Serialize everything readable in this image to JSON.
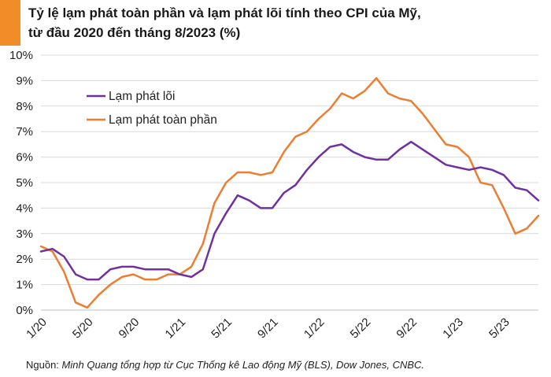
{
  "title": {
    "line1": "Tỷ lệ lạm phát toàn phần và lạm phát lõi tính theo CPI của Mỹ,",
    "line2": "từ đầu 2020 đến tháng 8/2023 (%)"
  },
  "source": {
    "prefix": "Nguồn: ",
    "text": "Minh Quang tổng hợp từ Cục Thống kê Lao động Mỹ (BLS), Dow Jones, CNBC."
  },
  "colors": {
    "accent": "#f28c28",
    "core": "#7030a0",
    "headline": "#ed7d31",
    "grid": "#d9d9d9"
  },
  "chart_data": {
    "type": "line",
    "x": [
      "1/20",
      "2/20",
      "3/20",
      "4/20",
      "5/20",
      "6/20",
      "7/20",
      "8/20",
      "9/20",
      "10/20",
      "11/20",
      "12/20",
      "1/21",
      "2/21",
      "3/21",
      "4/21",
      "5/21",
      "6/21",
      "7/21",
      "8/21",
      "9/21",
      "10/21",
      "11/21",
      "12/21",
      "1/22",
      "2/22",
      "3/22",
      "4/22",
      "5/22",
      "6/22",
      "7/22",
      "8/22",
      "9/22",
      "10/22",
      "11/22",
      "12/22",
      "1/23",
      "2/23",
      "3/23",
      "4/23",
      "5/23",
      "6/23",
      "7/23",
      "8/23"
    ],
    "x_tick_labels": [
      "1/20",
      "5/20",
      "9/20",
      "1/21",
      "5/21",
      "9/21",
      "1/22",
      "5/22",
      "9/22",
      "1/23",
      "5/23"
    ],
    "y_ticks": [
      "0%",
      "1%",
      "2%",
      "3%",
      "4%",
      "5%",
      "6%",
      "7%",
      "8%",
      "9%",
      "10%"
    ],
    "ylim": [
      0,
      10
    ],
    "grid": "horizontal",
    "legend_position": "top-left",
    "series": [
      {
        "name": "Lạm phát lõi",
        "color": "#7030a0",
        "values": [
          2.3,
          2.4,
          2.1,
          1.4,
          1.2,
          1.2,
          1.6,
          1.7,
          1.7,
          1.6,
          1.6,
          1.6,
          1.4,
          1.3,
          1.6,
          3.0,
          3.8,
          4.5,
          4.3,
          4.0,
          4.0,
          4.6,
          4.9,
          5.5,
          6.0,
          6.4,
          6.5,
          6.2,
          6.0,
          5.9,
          5.9,
          6.3,
          6.6,
          6.3,
          6.0,
          5.7,
          5.6,
          5.5,
          5.6,
          5.5,
          5.3,
          4.8,
          4.7,
          4.3
        ]
      },
      {
        "name": "Lạm phát toàn phần",
        "color": "#ed7d31",
        "values": [
          2.5,
          2.3,
          1.5,
          0.3,
          0.1,
          0.6,
          1.0,
          1.3,
          1.4,
          1.2,
          1.2,
          1.4,
          1.4,
          1.7,
          2.6,
          4.2,
          5.0,
          5.4,
          5.4,
          5.3,
          5.4,
          6.2,
          6.8,
          7.0,
          7.5,
          7.9,
          8.5,
          8.3,
          8.6,
          9.1,
          8.5,
          8.3,
          8.2,
          7.7,
          7.1,
          6.5,
          6.4,
          6.0,
          5.0,
          4.9,
          4.0,
          3.0,
          3.2,
          3.7
        ]
      }
    ]
  }
}
